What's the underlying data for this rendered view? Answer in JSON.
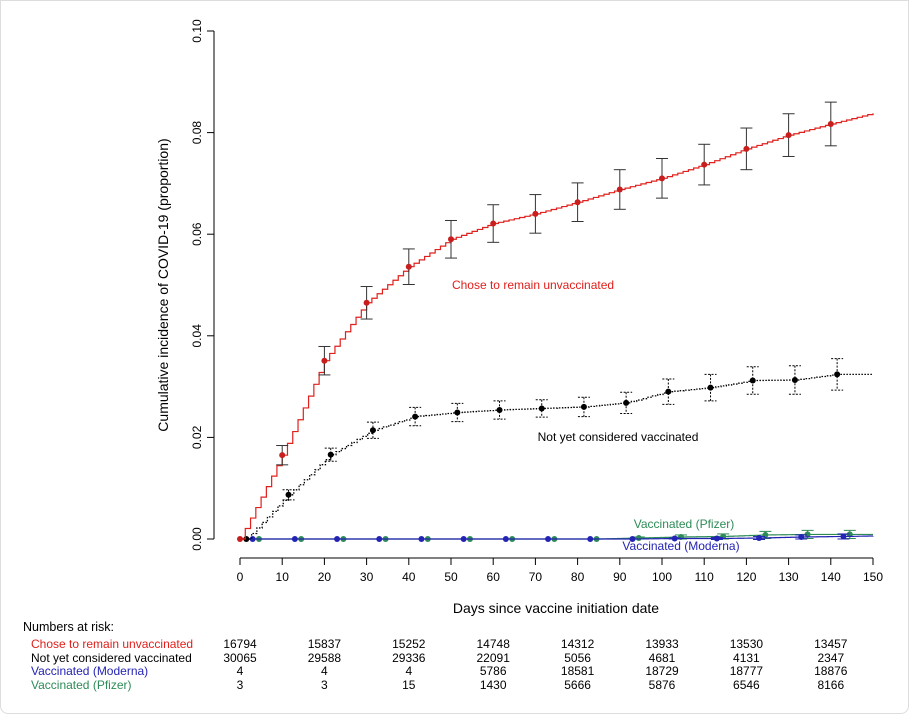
{
  "chart_data": {
    "type": "line",
    "xlabel": "Days since vaccine initiation date",
    "ylabel": "Cumulative incidence of COVID-19 (proportion)",
    "xlim": [
      0,
      150
    ],
    "ylim": [
      0,
      0.1
    ],
    "xticks": [
      "0",
      "10",
      "20",
      "30",
      "40",
      "50",
      "60",
      "70",
      "80",
      "90",
      "100",
      "110",
      "120",
      "130",
      "140",
      "150"
    ],
    "yticks": [
      "0.00",
      "0.02",
      "0.04",
      "0.06",
      "0.08",
      "0.10"
    ],
    "grid": false,
    "series": [
      {
        "name": "Chose to remain unvaccinated",
        "color": "#e0201c",
        "line": "solid-step",
        "x": [
          0,
          10,
          20,
          30,
          40,
          50,
          60,
          70,
          80,
          90,
          100,
          110,
          120,
          130,
          140
        ],
        "y": [
          0,
          0.0165,
          0.0351,
          0.0465,
          0.0536,
          0.059,
          0.0621,
          0.064,
          0.0663,
          0.0688,
          0.071,
          0.0737,
          0.0768,
          0.0795,
          0.0817
        ],
        "err": [
          0,
          0.0019,
          0.0028,
          0.0032,
          0.0035,
          0.0037,
          0.0037,
          0.0038,
          0.0038,
          0.0039,
          0.0039,
          0.004,
          0.0041,
          0.0042,
          0.0043
        ],
        "end": [
          150,
          0.0838
        ]
      },
      {
        "name": "Not yet considered vaccinated",
        "color": "#000000",
        "line": "dotted",
        "x": [
          1.5,
          11.5,
          21.5,
          31.5,
          41.5,
          51.5,
          61.5,
          71.5,
          81.5,
          91.5,
          101.5,
          111.5,
          121.5,
          131.5,
          141.5
        ],
        "y": [
          0,
          0.0087,
          0.0166,
          0.0214,
          0.0241,
          0.0249,
          0.0254,
          0.0257,
          0.026,
          0.0268,
          0.029,
          0.0298,
          0.0312,
          0.0313,
          0.0324
        ],
        "err": [
          0,
          0.001,
          0.0013,
          0.0016,
          0.0018,
          0.0018,
          0.0018,
          0.0017,
          0.0019,
          0.0021,
          0.0025,
          0.0026,
          0.0027,
          0.0028,
          0.0031
        ],
        "end": [
          150,
          0.0324
        ]
      },
      {
        "name": "Vaccinated (Moderna)",
        "color": "#2424b4",
        "line": "solid",
        "x": [
          3,
          13,
          23,
          33,
          43,
          53,
          63,
          73,
          83,
          93,
          103,
          113,
          123,
          133,
          143
        ],
        "y": [
          0,
          0,
          0,
          0,
          0,
          0,
          0,
          0,
          0,
          0,
          0.0001,
          0.0001,
          0.0002,
          0.0004,
          0.0005
        ],
        "err": [
          0,
          0,
          0,
          0,
          0,
          0,
          0,
          0,
          0,
          0,
          0.0001,
          0.0002,
          0.0003,
          0.0004,
          0.0005
        ],
        "end": [
          150,
          0.0006
        ]
      },
      {
        "name": "Vaccinated (Pfizer)",
        "color": "#2e8b57",
        "line": "solid",
        "x": [
          4.5,
          14.5,
          24.5,
          34.5,
          44.5,
          54.5,
          64.5,
          74.5,
          84.5,
          94.5,
          104.5,
          114.5,
          124.5,
          134.5,
          144.5
        ],
        "y": [
          0,
          0,
          0,
          0,
          0,
          0,
          0,
          0,
          0,
          0.0002,
          0.0004,
          0.0005,
          0.0008,
          0.0009,
          0.0009
        ],
        "err": [
          0,
          0,
          0,
          0,
          0,
          0,
          0,
          0,
          0,
          0.0002,
          0.0004,
          0.0005,
          0.0007,
          0.0008,
          0.0008
        ],
        "end": [
          150,
          0.0009
        ]
      }
    ],
    "annotations": [
      "Chose to remain unvaccinated",
      "Not yet considered vaccinated",
      "Vaccinated (Pfizer)",
      "Vaccinated (Moderna)"
    ]
  },
  "risk_table": {
    "title": "Numbers at risk:",
    "rows": [
      {
        "label": "Chose to remain unvaccinated",
        "color": "#e0201c",
        "values": [
          "16794",
          "15837",
          "15252",
          "14748",
          "14312",
          "13933",
          "13530",
          "13457"
        ]
      },
      {
        "label": "Not yet considered vaccinated",
        "color": "#000000",
        "values": [
          "30065",
          "29588",
          "29336",
          "22091",
          "5056",
          "4681",
          "4131",
          "2347"
        ]
      },
      {
        "label": "Vaccinated (Moderna)",
        "color": "#2424b4",
        "values": [
          "4",
          "4",
          "4",
          "5786",
          "18581",
          "18729",
          "18777",
          "18876"
        ]
      },
      {
        "label": "Vaccinated (Pfizer)",
        "color": "#2e8b57",
        "values": [
          "3",
          "3",
          "15",
          "1430",
          "5666",
          "5876",
          "6546",
          "8166"
        ]
      }
    ]
  }
}
